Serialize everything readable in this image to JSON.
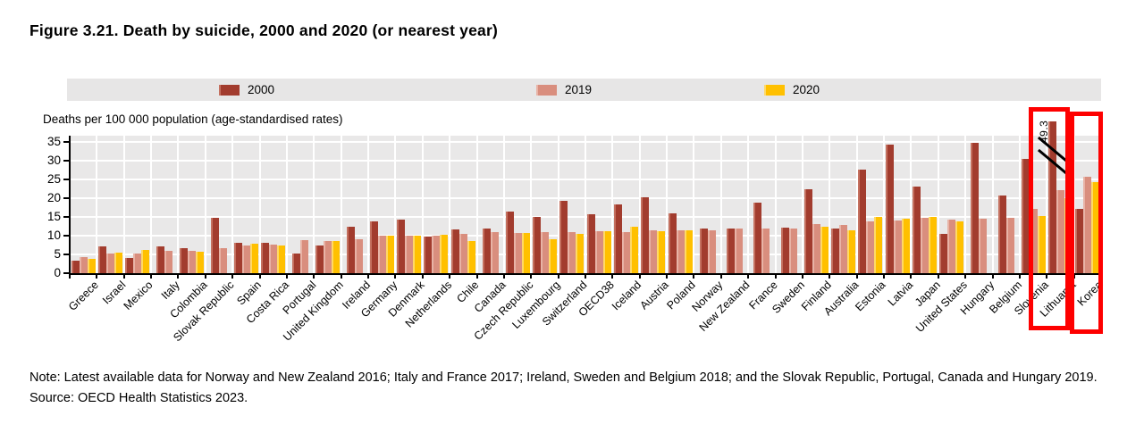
{
  "title": "Figure 3.21. Death by suicide, 2000 and 2020 (or nearest year)",
  "y_axis_title": "Deaths per 100 000 population (age-standardised rates)",
  "note": "Note: Latest available data for Norway and New Zealand 2016; Italy and France 2017; Ireland, Sweden and Belgium 2018; and the Slovak Republic, Portugal, Canada and Hungary 2019.",
  "source": "Source: OECD Health Statistics 2023.",
  "legend": [
    {
      "label": "2000",
      "color": "#a23c2e"
    },
    {
      "label": "2019",
      "color": "#d98e7e"
    },
    {
      "label": "2020",
      "color": "#ffc000"
    }
  ],
  "annotations": {
    "broken_bar_value_label": "49.3",
    "highlighted_countries": [
      "Lithuania",
      "Korea"
    ],
    "highlight_color": "#fe0000"
  },
  "chart_data": {
    "type": "bar",
    "title": "Death by suicide, 2000 and 2020 (or nearest year)",
    "ylabel": "Deaths per 100 000 population (age-standardised rates)",
    "ylim": [
      0,
      35
    ],
    "yticks": [
      0,
      5,
      10,
      15,
      20,
      25,
      30,
      35
    ],
    "grid": true,
    "legend_position": "top",
    "categories": [
      "Greece",
      "Israel",
      "Mexico",
      "Italy",
      "Colombia",
      "Slovak Republic",
      "Spain",
      "Costa Rica",
      "Portugal",
      "United Kingdom",
      "Ireland",
      "Germany",
      "Denmark",
      "Netherlands",
      "Chile",
      "Canada",
      "Czech Republic",
      "Luxembourg",
      "Switzerland",
      "OECD38",
      "Iceland",
      "Austria",
      "Poland",
      "Norway",
      "New Zealand",
      "France",
      "Sweden",
      "Finland",
      "Australia",
      "Estonia",
      "Latvia",
      "Japan",
      "United States",
      "Hungary",
      "Belgium",
      "Slovenia",
      "Lithuania",
      "Korea"
    ],
    "series": [
      {
        "name": "2000",
        "color": "#a23c2e",
        "color_light": "#c4705f",
        "values": [
          3.3,
          7.1,
          4.1,
          7.1,
          6.7,
          14.7,
          8.2,
          8.0,
          5.2,
          7.4,
          12.5,
          13.7,
          14.4,
          9.8,
          11.6,
          12.0,
          16.5,
          14.9,
          19.4,
          15.8,
          18.3,
          20.2,
          15.9,
          12.0,
          11.9,
          18.7,
          12.2,
          22.3,
          11.8,
          27.6,
          34.2,
          23.0,
          10.5,
          34.7,
          20.8,
          30.5,
          49.3,
          17.2
        ]
      },
      {
        "name": "2019",
        "color": "#d98e7e",
        "color_light": "#e8b3a6",
        "values": [
          4.4,
          5.2,
          5.3,
          5.9,
          5.9,
          6.6,
          7.3,
          7.7,
          8.7,
          8.6,
          9.1,
          9.9,
          10.1,
          10.0,
          10.5,
          11.0,
          10.7,
          10.9,
          11.0,
          11.2,
          10.9,
          11.4,
          11.5,
          11.5,
          11.8,
          11.8,
          11.9,
          13.2,
          12.9,
          13.7,
          14.1,
          14.7,
          14.4,
          14.5,
          14.8,
          17.1,
          22.1,
          25.6
        ]
      },
      {
        "name": "2020",
        "color": "#ffc000",
        "color_light": "#ffd966",
        "values": [
          3.8,
          5.5,
          6.2,
          null,
          5.6,
          null,
          7.8,
          7.3,
          null,
          8.5,
          null,
          10.1,
          9.9,
          10.3,
          8.6,
          null,
          10.7,
          9.0,
          10.4,
          11.1,
          12.5,
          11.2,
          11.4,
          null,
          null,
          null,
          null,
          12.5,
          11.5,
          14.9,
          14.6,
          15.0,
          13.7,
          null,
          null,
          15.3,
          20.0,
          24.2
        ]
      }
    ],
    "broken_bar": {
      "country": "Lithuania",
      "series": "2000",
      "actual_value": 49.3,
      "drawn_value": 40.5
    }
  }
}
